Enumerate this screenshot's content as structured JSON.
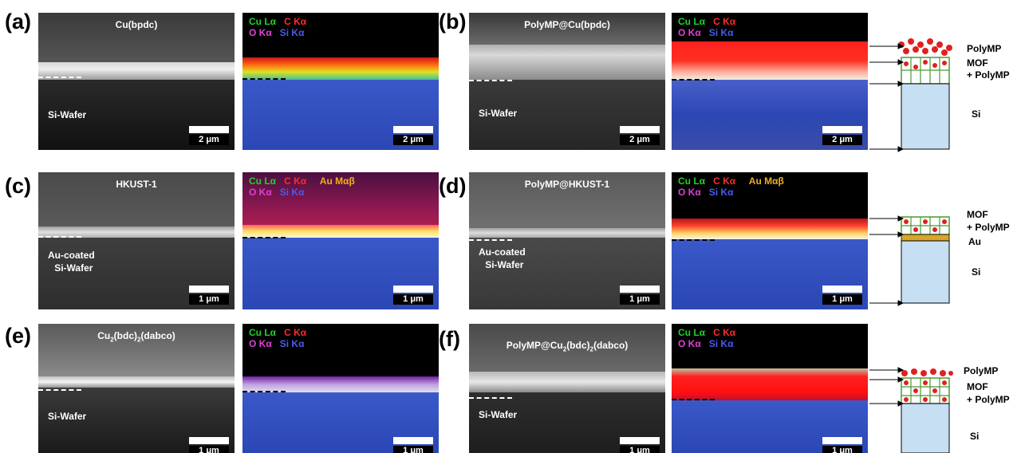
{
  "panels": {
    "a": {
      "letter": "(a)",
      "title": "Cu(bpdc)",
      "substrate": [
        "Si-Wafer"
      ],
      "scale_sem": "2 μm",
      "scale_edx": "2 μm",
      "legend": [
        [
          "Cu Lα",
          "C Kα"
        ],
        [
          "O Kα",
          "Si Kα"
        ]
      ]
    },
    "b": {
      "letter": "(b)",
      "title": "PolyMP@Cu(bpdc)",
      "substrate": [
        "Si-Wafer"
      ],
      "scale_sem": "2 μm",
      "scale_edx": "2 μm",
      "legend": [
        [
          "Cu Lα",
          "C Kα"
        ],
        [
          "O Kα",
          "Si Kα"
        ]
      ]
    },
    "c": {
      "letter": "(c)",
      "title": "HKUST-1",
      "substrate": [
        "Au-coated",
        "Si-Wafer"
      ],
      "scale_sem": "1 μm",
      "scale_edx": "1 μm",
      "legend": [
        [
          "Cu Lα",
          "C Kα",
          "Au Mαβ"
        ],
        [
          "O Kα",
          "Si Kα"
        ]
      ]
    },
    "d": {
      "letter": "(d)",
      "title": "PolyMP@HKUST-1",
      "substrate": [
        "Au-coated",
        "Si-Wafer"
      ],
      "scale_sem": "1 μm",
      "scale_edx": "1 μm",
      "legend": [
        [
          "Cu Lα",
          "C Kα",
          "Au Mαβ"
        ],
        [
          "O Kα",
          "Si Kα"
        ]
      ]
    },
    "e": {
      "letter": "(e)",
      "title_main": "Cu",
      "title_sub1": "2",
      "title_mid": "(bdc)",
      "title_sub2": "2",
      "title_end": "(dabco)",
      "substrate": [
        "Si-Wafer"
      ],
      "scale_sem": "1 μm",
      "scale_edx": "1 μm",
      "legend": [
        [
          "Cu Lα",
          "C Kα"
        ],
        [
          "O Kα",
          "Si Kα"
        ]
      ]
    },
    "f": {
      "letter": "(f)",
      "title_main": "PolyMP@Cu",
      "title_sub1": "2",
      "title_mid": "(bdc)",
      "title_sub2": "2",
      "title_end": "(dabco)",
      "substrate": [
        "Si-Wafer"
      ],
      "scale_sem": "1 μm",
      "scale_edx": "1 μm",
      "legend": [
        [
          "Cu Lα",
          "C Kα"
        ],
        [
          "O Kα",
          "Si Kα"
        ]
      ]
    }
  },
  "schematics": {
    "top": {
      "labels": [
        "PolyMP",
        "MOF",
        "+ PolyMP",
        "Si"
      ]
    },
    "mid": {
      "labels": [
        "MOF",
        "+ PolyMP",
        "Au",
        "Si"
      ]
    },
    "bot": {
      "labels": [
        "PolyMP",
        "MOF",
        "+ PolyMP",
        "Si"
      ]
    }
  },
  "colors": {
    "si_block": "#c6dff2",
    "mof_green": "#7ec850",
    "polymp_red": "#e02020",
    "au_layer": "#d9a52a",
    "edx_blue": "#2e4fc0",
    "edx_red": "#ff1a1a"
  }
}
